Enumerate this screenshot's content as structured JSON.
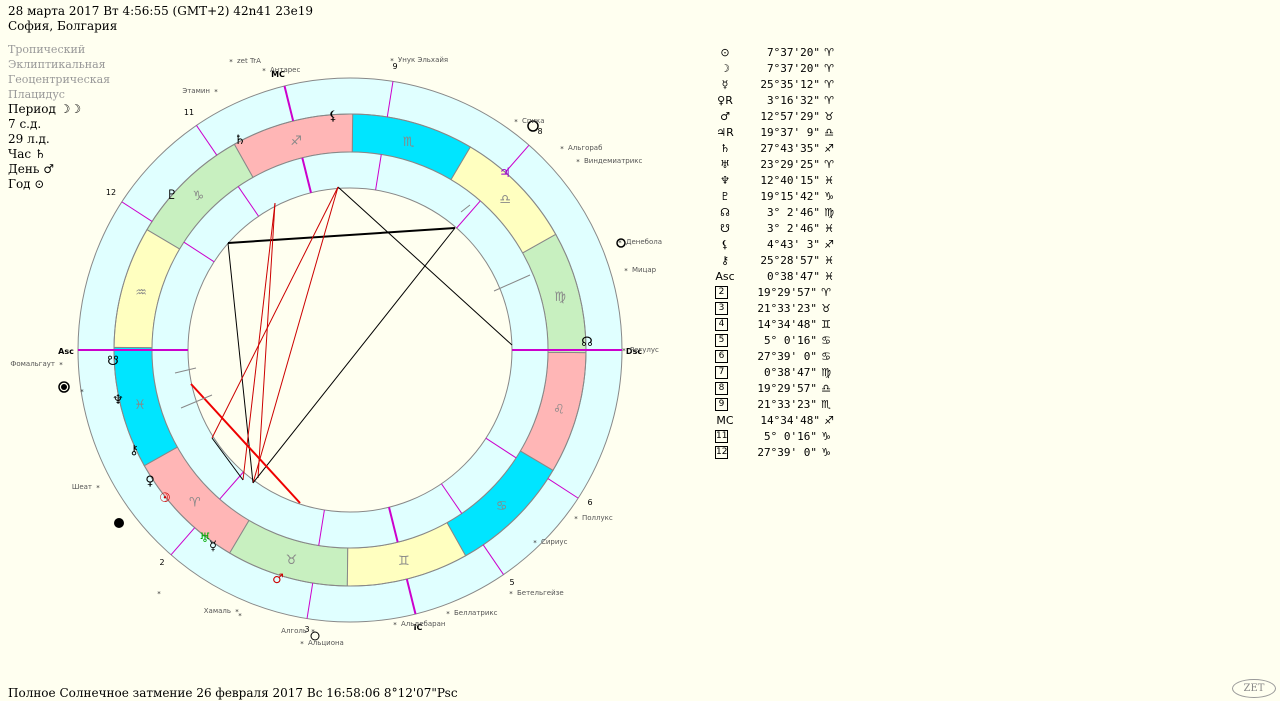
{
  "header": {
    "line1": "28 марта 2017  Вт   4:56:55 (GMT+2) 42n41  23e19",
    "line2": "София, Болгария"
  },
  "modes": [
    "Тропический",
    "Эклиптикальная",
    "Геоцентрическая",
    "Плацидус"
  ],
  "rulers": [
    {
      "text": "Период ☽☽"
    },
    {
      "text": "7 с.д."
    },
    {
      "text": "29 л.д."
    },
    {
      "text": "Час ♄"
    },
    {
      "text": "День ♂"
    },
    {
      "text": "Год ⊙"
    }
  ],
  "positions": [
    {
      "glyph": "⊙",
      "value": "7°37'20\"",
      "sign": "♈",
      "box": false
    },
    {
      "glyph": "☽",
      "value": "7°37'20\"",
      "sign": "♈",
      "box": false
    },
    {
      "glyph": "☿",
      "value": "25°35'12\"",
      "sign": "♈",
      "box": false
    },
    {
      "glyph": "♀R",
      "value": "3°16'32\"",
      "sign": "♈",
      "box": false
    },
    {
      "glyph": "♂",
      "value": "12°57'29\"",
      "sign": "♉",
      "box": false
    },
    {
      "glyph": "♃R",
      "value": "19°37' 9\"",
      "sign": "♎",
      "box": false
    },
    {
      "glyph": "♄",
      "value": "27°43'35\"",
      "sign": "♐",
      "box": false
    },
    {
      "glyph": "♅",
      "value": "23°29'25\"",
      "sign": "♈",
      "box": false
    },
    {
      "glyph": "♆",
      "value": "12°40'15\"",
      "sign": "♓",
      "box": false
    },
    {
      "glyph": "♇",
      "value": "19°15'42\"",
      "sign": "♑",
      "box": false
    },
    {
      "glyph": "☊",
      "value": "3° 2'46\"",
      "sign": "♍",
      "box": false
    },
    {
      "glyph": "☋",
      "value": "3° 2'46\"",
      "sign": "♓",
      "box": false
    },
    {
      "glyph": "⚸",
      "value": "4°43' 3\"",
      "sign": "♐",
      "box": false
    },
    {
      "glyph": "⚷",
      "value": "25°28'57\"",
      "sign": "♓",
      "box": false
    },
    {
      "glyph": "Asc",
      "value": "0°38'47\"",
      "sign": "♓",
      "box": false
    },
    {
      "glyph": "2",
      "value": "19°29'57\"",
      "sign": "♈",
      "box": true
    },
    {
      "glyph": "3",
      "value": "21°33'23\"",
      "sign": "♉",
      "box": true
    },
    {
      "glyph": "4",
      "value": "14°34'48\"",
      "sign": "♊",
      "box": true
    },
    {
      "glyph": "5",
      "value": "5° 0'16\"",
      "sign": "♋",
      "box": true
    },
    {
      "glyph": "6",
      "value": "27°39' 0\"",
      "sign": "♋",
      "box": true
    },
    {
      "glyph": "7",
      "value": "0°38'47\"",
      "sign": "♍",
      "box": true
    },
    {
      "glyph": "8",
      "value": "19°29'57\"",
      "sign": "♎",
      "box": true
    },
    {
      "glyph": "9",
      "value": "21°33'23\"",
      "sign": "♏",
      "box": true
    },
    {
      "glyph": "MC",
      "value": "14°34'48\"",
      "sign": "♐",
      "box": false
    },
    {
      "glyph": "11",
      "value": "5° 0'16\"",
      "sign": "♑",
      "box": true
    },
    {
      "glyph": "12",
      "value": "27°39' 0\"",
      "sign": "♑",
      "box": true
    }
  ],
  "chart": {
    "asc_label": "Asc",
    "dsc_label": "Dsc",
    "mc_label": "MC",
    "ic_label": "IC",
    "house_numbers": [
      "2",
      "3",
      "5",
      "6",
      "8",
      "9",
      "11",
      "12"
    ],
    "stars": [
      "zet TrA",
      "Антарес",
      "Унук Эльхайя",
      "Спика",
      "Альгораб",
      "Виндемиатрикс",
      "Денебола",
      "Мицар",
      "Регулус",
      "Поллукс",
      "Сириус",
      "Бетельгейзе",
      "Беллатрикс",
      "Альдебаран",
      "Алголь",
      "Альциона",
      "Хамаль",
      "Шеат",
      "Фомальгаут",
      "Этамин"
    ],
    "sign_colors": {
      "fire": "#FFB6B6",
      "earth": "#C8F0C0",
      "air": "#FFFFC0",
      "water": "#00E5FF",
      "ring": "#E0FFFF"
    }
  },
  "footer": "Полное Солнечное затмение  26 февраля 2017 Вс 16:58:06  8°12'07\"Psc",
  "logo": "ZET"
}
